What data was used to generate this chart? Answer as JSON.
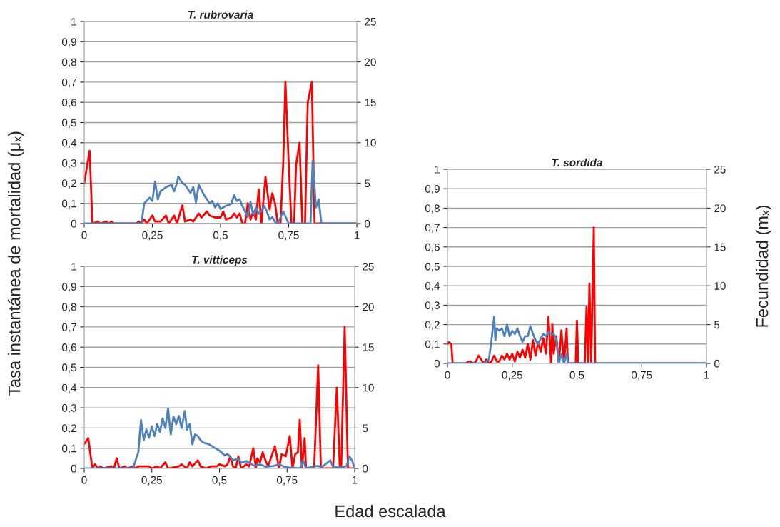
{
  "chart_data": [
    {
      "type": "line",
      "title": "T. rubrovaria",
      "ylabel": "Tasa instantánea de mortalidad (μₓ)",
      "grid": "y",
      "xlim": [
        0,
        1
      ],
      "xticks": [
        0,
        {
          "value": 0.25,
          "label": "0,25"
        },
        {
          "value": 0.5,
          "label": "0,5"
        },
        {
          "value": 0.75,
          "label": "0,75"
        },
        1
      ],
      "ylim": [
        0,
        1
      ],
      "yticks": [
        0,
        {
          "value": 0.1,
          "label": "0,1"
        },
        {
          "value": 0.2,
          "label": "0,2"
        },
        {
          "value": 0.3,
          "label": "0,3"
        },
        {
          "value": 0.4,
          "label": "0,4"
        },
        {
          "value": 0.5,
          "label": "0,5"
        },
        {
          "value": 0.6,
          "label": "0,6"
        },
        {
          "value": 0.7,
          "label": "0,7"
        },
        {
          "value": 0.8,
          "label": "0,8"
        },
        {
          "value": 0.9,
          "label": "0,9"
        },
        1
      ],
      "y2lim": [
        0,
        25
      ],
      "y2ticks": [
        0,
        5,
        10,
        15,
        20,
        25
      ],
      "series": [
        {
          "color": "#ff0000",
          "x": [
            0,
            0.01,
            0.02,
            0.03,
            0.05,
            0.06,
            0.08,
            0.09,
            0.1,
            0.11,
            0.19,
            0.2,
            0.21,
            0.22,
            0.23,
            0.25,
            0.26,
            0.28,
            0.3,
            0.31,
            0.33,
            0.34,
            0.36,
            0.37,
            0.39,
            0.4,
            0.42,
            0.43,
            0.45,
            0.46,
            0.48,
            0.5,
            0.51,
            0.52,
            0.54,
            0.55,
            0.56,
            0.57,
            0.58,
            0.59,
            0.6,
            0.61,
            0.62,
            0.63,
            0.64,
            0.65,
            0.665,
            0.68,
            0.69,
            0.7,
            0.71,
            0.72,
            0.73,
            0.738,
            0.75,
            0.76,
            0.77,
            0.777,
            0.79,
            0.8,
            0.81,
            0.82,
            0.835,
            0.845,
            0.87,
            1
          ],
          "values": [
            0.2,
            0.28,
            0.36,
            0,
            0.01,
            0,
            0.01,
            0,
            0.01,
            0,
            0,
            0.01,
            0,
            0.02,
            0,
            0.04,
            0.01,
            0.01,
            0.04,
            0,
            0.04,
            0,
            0.09,
            0.01,
            0.02,
            0.01,
            0.05,
            0.03,
            0.06,
            0.04,
            0.03,
            0.03,
            0.06,
            0.02,
            0.03,
            0.05,
            0.03,
            0.05,
            0,
            0,
            0.1,
            0.02,
            0.06,
            0.02,
            0.17,
            0,
            0.23,
            0.07,
            0.15,
            0.1,
            0,
            0,
            0.3,
            0.7,
            0.3,
            0,
            0,
            0.29,
            0.4,
            0,
            0,
            0.6,
            0.7,
            0,
            0,
            0
          ]
        },
        {
          "color": "#4f81bd",
          "axis": "y2",
          "x": [
            0,
            0.21,
            0.22,
            0.24,
            0.25,
            0.26,
            0.27,
            0.28,
            0.3,
            0.32,
            0.33,
            0.34,
            0.345,
            0.36,
            0.37,
            0.39,
            0.4,
            0.41,
            0.42,
            0.44,
            0.46,
            0.47,
            0.48,
            0.49,
            0.5,
            0.52,
            0.53,
            0.54,
            0.55,
            0.56,
            0.57,
            0.58,
            0.6,
            0.61,
            0.62,
            0.63,
            0.64,
            0.65,
            0.66,
            0.67,
            0.68,
            0.69,
            0.7,
            0.71,
            0.73,
            0.75,
            0.83,
            0.838,
            0.85,
            0.86,
            0.87,
            1
          ],
          "values": [
            0,
            0,
            2.5,
            3.2,
            2.8,
            5.2,
            3,
            4,
            4.5,
            4.8,
            4,
            5,
            5.8,
            5,
            4.8,
            3.8,
            4.5,
            2.6,
            4.8,
            3.5,
            2.5,
            2.8,
            2,
            2.5,
            1.8,
            2.2,
            2.3,
            2.5,
            3.5,
            2.8,
            3,
            2.2,
            0.8,
            2.7,
            1,
            2,
            1.2,
            1.6,
            2.2,
            1.5,
            0.5,
            0.8,
            0.2,
            0,
            1.5,
            0,
            0,
            7.8,
            2,
            3,
            0,
            0
          ]
        }
      ]
    },
    {
      "type": "line",
      "title": "T. vitticeps",
      "xlabel": "Edad escalada",
      "grid": "y",
      "xlim": [
        0,
        1
      ],
      "xticks": [
        0,
        {
          "value": 0.25,
          "label": "0,25"
        },
        {
          "value": 0.5,
          "label": "0,5"
        },
        {
          "value": 0.75,
          "label": "0,75"
        },
        1
      ],
      "ylim": [
        0,
        1
      ],
      "yticks": [
        0,
        {
          "value": 0.1,
          "label": "0,1"
        },
        {
          "value": 0.2,
          "label": "0,2"
        },
        {
          "value": 0.3,
          "label": "0,3"
        },
        {
          "value": 0.4,
          "label": "0,4"
        },
        {
          "value": 0.5,
          "label": "0,5"
        },
        {
          "value": 0.6,
          "label": "0,6"
        },
        {
          "value": 0.7,
          "label": "0,7"
        },
        {
          "value": 0.8,
          "label": "0,8"
        },
        {
          "value": 0.9,
          "label": "0,9"
        },
        1
      ],
      "y2lim": [
        0,
        25
      ],
      "y2ticks": [
        0,
        5,
        10,
        15,
        20,
        25
      ],
      "series": [
        {
          "color": "#ff0000",
          "x": [
            0,
            0.015,
            0.03,
            0.04,
            0.05,
            0.06,
            0.07,
            0.1,
            0.11,
            0.12,
            0.13,
            0.15,
            0.16,
            0.18,
            0.19,
            0.2,
            0.24,
            0.25,
            0.27,
            0.28,
            0.3,
            0.31,
            0.35,
            0.36,
            0.38,
            0.39,
            0.4,
            0.42,
            0.43,
            0.45,
            0.47,
            0.49,
            0.5,
            0.52,
            0.53,
            0.54,
            0.55,
            0.56,
            0.57,
            0.58,
            0.6,
            0.61,
            0.625,
            0.635,
            0.64,
            0.65,
            0.66,
            0.67,
            0.68,
            0.705,
            0.715,
            0.72,
            0.73,
            0.745,
            0.76,
            0.77,
            0.78,
            0.79,
            0.797,
            0.805,
            0.815,
            0.82,
            0.85,
            0.865,
            0.875,
            0.92,
            0.934,
            0.945,
            0.95,
            0.963,
            0.975,
            1
          ],
          "values": [
            0.12,
            0.15,
            0,
            0.02,
            0,
            0.01,
            0,
            0.01,
            0,
            0.05,
            0,
            0.01,
            0,
            0.01,
            0,
            0.01,
            0.01,
            0,
            0.01,
            0,
            0.03,
            0,
            0.01,
            0.02,
            0,
            0.03,
            0.01,
            0.04,
            0.01,
            0,
            0.01,
            0.01,
            0.02,
            0.01,
            0.02,
            0.06,
            0.01,
            0,
            0.06,
            0,
            0.02,
            0.01,
            0.1,
            0,
            0.05,
            0.03,
            0.08,
            0.04,
            0.01,
            0.11,
            0.04,
            0,
            0.07,
            0.06,
            0.16,
            0,
            0.07,
            0.08,
            0.24,
            0,
            0.15,
            0,
            0,
            0.51,
            0,
            0,
            0.4,
            0,
            0,
            0.7,
            0,
            0
          ]
        },
        {
          "color": "#4f81bd",
          "axis": "y2",
          "x": [
            0,
            0.18,
            0.2,
            0.21,
            0.22,
            0.23,
            0.24,
            0.25,
            0.26,
            0.27,
            0.28,
            0.29,
            0.3,
            0.31,
            0.32,
            0.33,
            0.34,
            0.35,
            0.36,
            0.372,
            0.38,
            0.39,
            0.4,
            0.41,
            0.42,
            0.43,
            0.44,
            0.46,
            0.48,
            0.5,
            0.52,
            0.53,
            0.55,
            0.57,
            0.58,
            0.6,
            0.62,
            0.63,
            0.65,
            0.67,
            0.7,
            0.72,
            0.74,
            0.76,
            0.8,
            0.81,
            0.82,
            0.84,
            0.86,
            0.88,
            0.91,
            0.92,
            0.95,
            0.97,
            0.98,
            0.99,
            1
          ],
          "values": [
            0,
            0,
            2,
            6,
            3.5,
            4.8,
            3.8,
            5.2,
            4,
            5.5,
            4.5,
            6.2,
            5,
            7.4,
            4.2,
            6.4,
            5.5,
            6.5,
            5,
            7.1,
            4.8,
            5.5,
            3,
            4.2,
            4,
            3.5,
            3.2,
            3,
            2.6,
            2.2,
            1.6,
            1.8,
            1,
            1.2,
            0.7,
            0.9,
            0.5,
            0.3,
            0.5,
            0.2,
            0.3,
            0.5,
            0.2,
            0.1,
            0,
            1,
            0,
            0.2,
            0.3,
            0.2,
            1,
            0.2,
            0.1,
            0.3,
            1.5,
            1,
            0
          ]
        }
      ]
    },
    {
      "type": "line",
      "title": "T. sordida",
      "y2label": "Fecundidad (mₓ)",
      "grid": "y",
      "xlim": [
        0,
        1
      ],
      "xticks": [
        0,
        {
          "value": 0.25,
          "label": "0,25"
        },
        {
          "value": 0.5,
          "label": "0,5"
        },
        {
          "value": 0.75,
          "label": "0,75"
        },
        1
      ],
      "ylim": [
        0,
        1
      ],
      "yticks": [
        0,
        {
          "value": 0.1,
          "label": "0,1"
        },
        {
          "value": 0.2,
          "label": "0,2"
        },
        {
          "value": 0.3,
          "label": "0,3"
        },
        {
          "value": 0.4,
          "label": "0,4"
        },
        {
          "value": 0.5,
          "label": "0,5"
        },
        {
          "value": 0.6,
          "label": "0,6"
        },
        {
          "value": 0.7,
          "label": "0,7"
        },
        {
          "value": 0.8,
          "label": "0,8"
        },
        {
          "value": 0.9,
          "label": "0,9"
        },
        1
      ],
      "y2lim": [
        0,
        25
      ],
      "y2ticks": [
        0,
        5,
        10,
        15,
        20,
        25
      ],
      "series": [
        {
          "color": "#ff0000",
          "x": [
            0,
            0.005,
            0.015,
            0.02,
            0.07,
            0.08,
            0.09,
            0.1,
            0.11,
            0.12,
            0.13,
            0.14,
            0.15,
            0.16,
            0.17,
            0.18,
            0.19,
            0.2,
            0.21,
            0.22,
            0.23,
            0.24,
            0.25,
            0.26,
            0.27,
            0.28,
            0.29,
            0.3,
            0.31,
            0.32,
            0.33,
            0.34,
            0.35,
            0.36,
            0.37,
            0.38,
            0.39,
            0.4,
            0.405,
            0.41,
            0.42,
            0.43,
            0.44,
            0.45,
            0.46,
            0.465,
            0.495,
            0.5,
            0.505,
            0.53,
            0.537,
            0.543,
            0.548,
            0.555,
            0.565,
            0.57,
            1
          ],
          "values": [
            0.1,
            0.11,
            0.1,
            0,
            0,
            0.01,
            0.01,
            0,
            0.01,
            0.04,
            0.02,
            0,
            0.02,
            0,
            0.01,
            0.04,
            0.01,
            0.01,
            0.04,
            0.02,
            0.05,
            0.02,
            0.05,
            0.01,
            0.06,
            0.03,
            0.07,
            0.03,
            0.1,
            0.02,
            0.12,
            0.04,
            0.11,
            0.06,
            0.13,
            0.05,
            0.24,
            0,
            0.2,
            0.05,
            0.14,
            0,
            0.17,
            0,
            0.18,
            0,
            0,
            0.22,
            0,
            0,
            0.29,
            0,
            0.41,
            0,
            0.7,
            0,
            0
          ]
        },
        {
          "color": "#4f81bd",
          "axis": "y2",
          "x": [
            0,
            0.14,
            0.16,
            0.17,
            0.18,
            0.185,
            0.19,
            0.2,
            0.21,
            0.22,
            0.23,
            0.24,
            0.25,
            0.26,
            0.27,
            0.28,
            0.29,
            0.3,
            0.31,
            0.32,
            0.33,
            0.34,
            0.35,
            0.36,
            0.37,
            0.38,
            0.39,
            0.4,
            0.41,
            0.42,
            0.43,
            0.44,
            0.45,
            0.46,
            0.465,
            1
          ],
          "values": [
            0,
            0,
            0.5,
            3,
            6,
            3,
            4.5,
            4.2,
            4.5,
            3.5,
            5,
            3.5,
            4.2,
            3.8,
            4.5,
            3.5,
            2.8,
            3.5,
            3.5,
            4.8,
            3.8,
            3,
            2.5,
            3.2,
            3.8,
            3.5,
            4,
            3.8,
            3.8,
            3.2,
            0,
            1.2,
            0,
            1.2,
            0,
            0
          ]
        }
      ]
    }
  ]
}
